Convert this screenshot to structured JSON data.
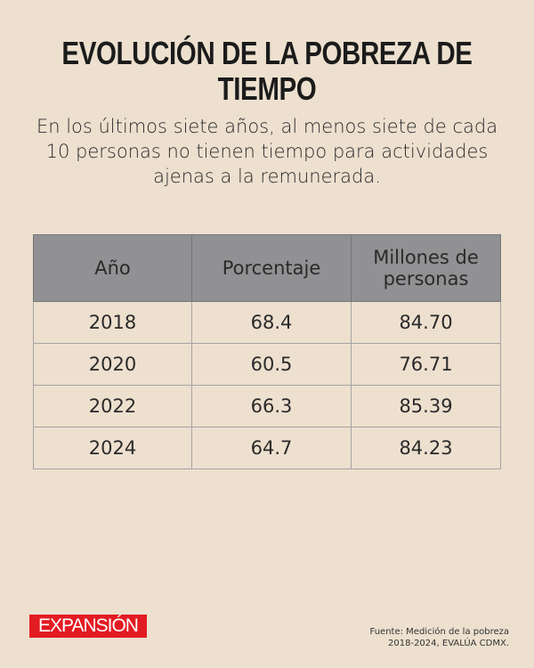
{
  "title": "EVOLUCIÓN DE LA POBREZA DE TIEMPO",
  "subtitle": "En los últimos siete años, al menos siete de cada 10 personas no tienen tiempo para actividades ajenas a la remunerada.",
  "colors": {
    "background": "#ede0cf",
    "header": "#919194",
    "brand": "#e31b23"
  },
  "chart_data": {
    "type": "table",
    "columns": [
      "Año",
      "Porcentaje",
      "Millones de personas"
    ],
    "rows": [
      [
        "2018",
        "68.4",
        "84.70"
      ],
      [
        "2020",
        "60.5",
        "76.71"
      ],
      [
        "2022",
        "66.3",
        "85.39"
      ],
      [
        "2024",
        "64.7",
        "84.23"
      ]
    ]
  },
  "footer": {
    "logo": "EXPANSIÓN",
    "source_line1": "Fuente: Medición de la pobreza",
    "source_line2": "2018-2024, EVALÚA CDMX."
  }
}
